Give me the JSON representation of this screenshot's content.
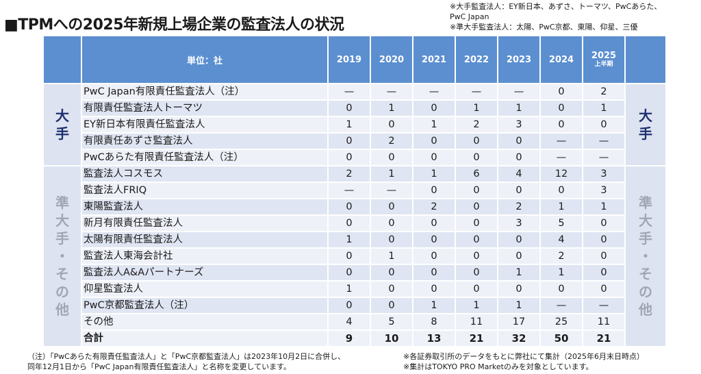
{
  "title": "■TPMへの2025年新規上場企業の監査法人の状況",
  "top_notes": [
    "※大手監査法人：EY新日本、あずさ、トーマツ、PwCあらた、",
    "PwC Japan",
    "※準大手監査法人：太陽、PwC京都、東陽、仰星、三優"
  ],
  "table": {
    "unit_header": "単位：社",
    "years": [
      "2019",
      "2020",
      "2021",
      "2022",
      "2023",
      "2024",
      "2025"
    ],
    "last_year_sub": "上半期",
    "group_big_label": [
      "大",
      "手"
    ],
    "group_semi_label": [
      "準",
      "大",
      "手",
      "・",
      "そ",
      "の",
      "他"
    ],
    "rows": [
      {
        "name": "PwC Japan有限責任監査法人（注）",
        "values": [
          "—",
          "—",
          "—",
          "—",
          "—",
          "0",
          "2"
        ]
      },
      {
        "name": "有限責任監査法人トーマツ",
        "values": [
          "0",
          "1",
          "0",
          "1",
          "1",
          "0",
          "1"
        ]
      },
      {
        "name": "EY新日本有限責任監査法人",
        "values": [
          "1",
          "0",
          "1",
          "2",
          "3",
          "0",
          "0"
        ]
      },
      {
        "name": "有限責任あずさ監査法人",
        "values": [
          "0",
          "2",
          "0",
          "0",
          "0",
          "—",
          "—"
        ]
      },
      {
        "name": "PwCあらた有限責任監査法人（注）",
        "values": [
          "0",
          "0",
          "0",
          "0",
          "0",
          "—",
          "—"
        ]
      },
      {
        "name": "監査法人コスモス",
        "values": [
          "2",
          "1",
          "1",
          "6",
          "4",
          "12",
          "3"
        ]
      },
      {
        "name": "監査法人FRIQ",
        "values": [
          "—",
          "—",
          "0",
          "0",
          "0",
          "0",
          "3"
        ]
      },
      {
        "name": "東陽監査法人",
        "values": [
          "0",
          "0",
          "2",
          "0",
          "2",
          "1",
          "1"
        ]
      },
      {
        "name": "新月有限責任監査法人",
        "values": [
          "0",
          "0",
          "0",
          "0",
          "3",
          "5",
          "0"
        ]
      },
      {
        "name": "太陽有限責任監査法人",
        "values": [
          "1",
          "0",
          "0",
          "0",
          "0",
          "4",
          "0"
        ]
      },
      {
        "name": "監査法人東海会計社",
        "values": [
          "0",
          "1",
          "0",
          "0",
          "0",
          "2",
          "0"
        ]
      },
      {
        "name": "監査法人A&Aパートナーズ",
        "values": [
          "0",
          "0",
          "0",
          "0",
          "1",
          "1",
          "0"
        ]
      },
      {
        "name": "仰星監査法人",
        "values": [
          "1",
          "0",
          "0",
          "0",
          "0",
          "0",
          "0"
        ]
      },
      {
        "name": "PwC京都監査法人（注）",
        "values": [
          "0",
          "0",
          "1",
          "1",
          "1",
          "—",
          "—"
        ]
      },
      {
        "name": "その他",
        "values": [
          "4",
          "5",
          "8",
          "11",
          "17",
          "25",
          "11"
        ]
      }
    ],
    "total": {
      "name": "合計",
      "values": [
        "9",
        "10",
        "13",
        "21",
        "32",
        "50",
        "21"
      ]
    }
  },
  "footnote_left": [
    "（注）「PwCあらた有限責任監査法人」と「PwC京都監査法人」は2023年10月2日に合併し、",
    "同年12月1日から「PwC Japan有限責任監査法人」と名称を変更しています。"
  ],
  "footnote_right": [
    "※各証券取引所のデータをもとに弊社にて集計（2025年6月末日時点）",
    "※集計はTOKYO PRO Marketのみを対象としています。"
  ]
}
